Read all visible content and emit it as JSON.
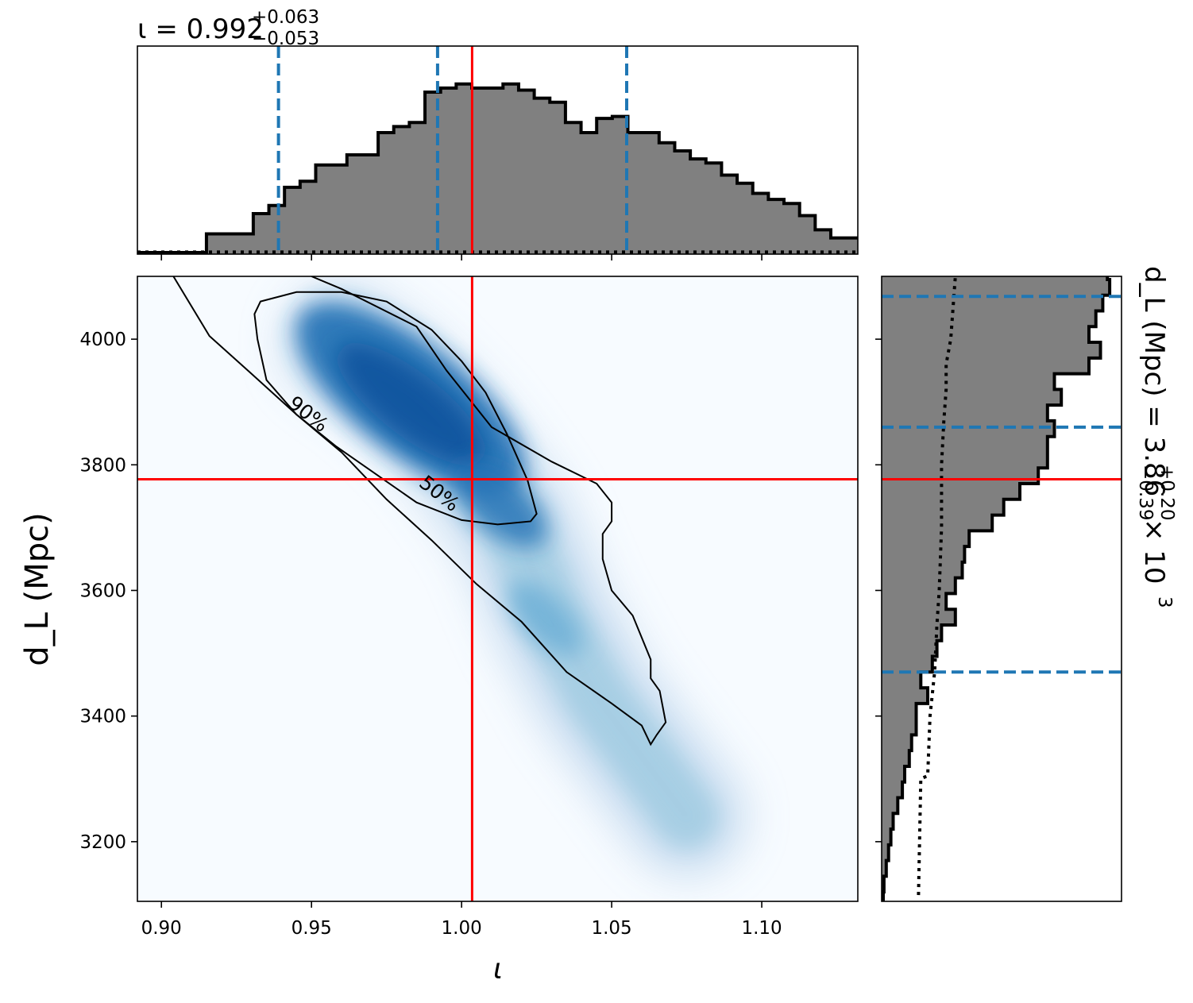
{
  "chart_data": {
    "type": "corner",
    "panels": {
      "top_histogram": {
        "title_main": "ι = 0.992",
        "title_sup": "+0.063",
        "title_sub": "−0.053",
        "xlim": [
          0.892,
          1.132
        ],
        "bin_edges_start": 0.915,
        "bin_width": 0.0052,
        "heights": [
          0.1,
          0.1,
          0.1,
          0.2,
          0.24,
          0.33,
          0.36,
          0.44,
          0.44,
          0.49,
          0.49,
          0.6,
          0.63,
          0.65,
          0.8,
          0.82,
          0.84,
          0.82,
          0.82,
          0.84,
          0.81,
          0.77,
          0.75,
          0.65,
          0.6,
          0.67,
          0.68,
          0.6,
          0.6,
          0.55,
          0.51,
          0.47,
          0.45,
          0.39,
          0.35,
          0.3,
          0.27,
          0.25,
          0.19,
          0.12,
          0.08,
          0.08,
          0.06,
          0.05,
          0.03,
          0.02
        ],
        "prior_level": 0.022,
        "quantile_lines": [
          0.939,
          0.992,
          1.055
        ],
        "truth": 1.0035
      },
      "joint": {
        "xlabel": "ι",
        "ylabel": "d_L (Mpc)",
        "xlim": [
          0.892,
          1.132
        ],
        "ylim": [
          3105,
          4100
        ],
        "xticks": [
          "0.90",
          "0.95",
          "1.00",
          "1.05",
          "1.10"
        ],
        "xtick_values": [
          0.9,
          0.95,
          1.0,
          1.05,
          1.1
        ],
        "yticks": [
          "3200",
          "3400",
          "3600",
          "3800",
          "4000"
        ],
        "ytick_values": [
          3200,
          3400,
          3600,
          3800,
          4000
        ],
        "contour_labels": [
          "90%",
          "50%"
        ],
        "contour_50": [
          [
            0.933,
            4060
          ],
          [
            0.945,
            4075
          ],
          [
            0.96,
            4075
          ],
          [
            0.975,
            4060
          ],
          [
            0.99,
            4015
          ],
          [
            1.0,
            3965
          ],
          [
            1.008,
            3915
          ],
          [
            1.015,
            3850
          ],
          [
            1.022,
            3775
          ],
          [
            1.025,
            3722
          ],
          [
            1.023,
            3710
          ],
          [
            1.012,
            3705
          ],
          [
            1.0,
            3712
          ],
          [
            0.985,
            3740
          ],
          [
            0.97,
            3790
          ],
          [
            0.958,
            3830
          ],
          [
            0.945,
            3880
          ],
          [
            0.935,
            3935
          ],
          [
            0.932,
            4000
          ],
          [
            0.931,
            4040
          ],
          [
            0.933,
            4060
          ]
        ],
        "contour_90": [
          [
            0.904,
            4100
          ],
          [
            0.916,
            4005
          ],
          [
            0.93,
            3945
          ],
          [
            0.945,
            3880
          ],
          [
            0.96,
            3820
          ],
          [
            0.975,
            3745
          ],
          [
            0.99,
            3680
          ],
          [
            1.005,
            3610
          ],
          [
            1.02,
            3550
          ],
          [
            1.035,
            3470
          ],
          [
            1.05,
            3420
          ],
          [
            1.06,
            3385
          ],
          [
            1.063,
            3355
          ],
          [
            1.065,
            3370
          ],
          [
            1.068,
            3390
          ],
          [
            1.066,
            3440
          ],
          [
            1.063,
            3460
          ],
          [
            1.063,
            3490
          ],
          [
            1.057,
            3560
          ],
          [
            1.05,
            3600
          ],
          [
            1.047,
            3650
          ],
          [
            1.047,
            3690
          ],
          [
            1.05,
            3710
          ],
          [
            1.05,
            3740
          ],
          [
            1.045,
            3770
          ],
          [
            1.03,
            3805
          ],
          [
            1.01,
            3860
          ],
          [
            0.995,
            3950
          ],
          [
            0.985,
            4020
          ],
          [
            0.96,
            4080
          ],
          [
            0.95,
            4100
          ]
        ],
        "density_ridge": [
          [
            0.96,
            3995
          ],
          [
            0.975,
            3945
          ],
          [
            0.985,
            3900
          ],
          [
            0.997,
            3840
          ],
          [
            1.008,
            3770
          ],
          [
            1.018,
            3700
          ],
          [
            1.03,
            3560
          ],
          [
            1.045,
            3430
          ],
          [
            1.075,
            3240
          ]
        ],
        "truth": [
          1.0035,
          3777
        ]
      },
      "right_histogram": {
        "title_main": "d_L (Mpc) = 3.86",
        "title_sup": "+0.20",
        "title_sub": "−0.39",
        "title_multiplier": "× 10",
        "title_exponent": "3",
        "ylim": [
          3105,
          4100
        ],
        "bin_edges_start": 3120,
        "bin_width": 25,
        "heights": [
          0.01,
          0.02,
          0.03,
          0.04,
          0.05,
          0.07,
          0.09,
          0.1,
          0.12,
          0.13,
          0.15,
          0.15,
          0.2,
          0.17,
          0.22,
          0.24,
          0.26,
          0.32,
          0.28,
          0.32,
          0.35,
          0.36,
          0.38,
          0.48,
          0.53,
          0.6,
          0.68,
          0.72,
          0.72,
          0.75,
          0.72,
          0.78,
          0.75,
          0.9,
          0.95,
          0.9,
          0.93,
          0.96,
          0.99,
          0.98,
          0.99,
          0.98,
          0.76,
          0.75,
          0.64,
          0.58,
          0.55,
          0.4
        ],
        "prior_curve": [
          [
            3115,
            0.16
          ],
          [
            3300,
            0.17
          ],
          [
            3305,
            0.2
          ],
          [
            3400,
            0.21
          ],
          [
            3470,
            0.23
          ],
          [
            3545,
            0.24
          ],
          [
            3600,
            0.25
          ],
          [
            3700,
            0.26
          ],
          [
            3800,
            0.26
          ],
          [
            3870,
            0.27
          ],
          [
            3920,
            0.28
          ],
          [
            3960,
            0.28
          ],
          [
            4000,
            0.3
          ],
          [
            4050,
            0.31
          ],
          [
            4100,
            0.32
          ]
        ],
        "quantile_lines": [
          3470,
          3860,
          4068
        ],
        "truth": 3777
      }
    }
  }
}
